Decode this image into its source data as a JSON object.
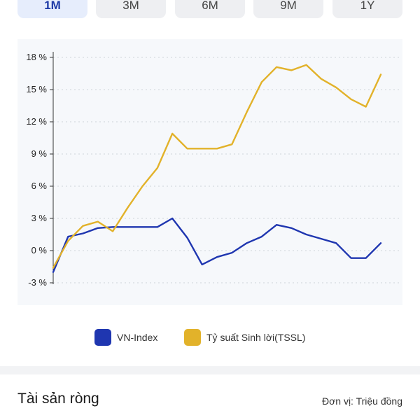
{
  "tabs": [
    {
      "label": "1M",
      "active": true
    },
    {
      "label": "3M",
      "active": false
    },
    {
      "label": "6M",
      "active": false
    },
    {
      "label": "9M",
      "active": false
    },
    {
      "label": "1Y",
      "active": false
    }
  ],
  "colors": {
    "vn_index": "#1f36b0",
    "tssl": "#e2b22a",
    "grid": "#cfd3da",
    "axis": "#333333"
  },
  "legend": {
    "vn_index": "VN-Index",
    "tssl": "Tỷ suất Sinh lời(TSSL)"
  },
  "section": {
    "title": "Tài sản ròng",
    "unit": "Đơn vị: Triệu đồng"
  },
  "chart_data": {
    "type": "line",
    "ylim": [
      -3,
      18
    ],
    "yticks": [
      {
        "value": 18,
        "label": "18 %"
      },
      {
        "value": 15,
        "label": "15 %"
      },
      {
        "value": 12,
        "label": "12 %"
      },
      {
        "value": 9,
        "label": "9 %"
      },
      {
        "value": 6,
        "label": "6 %"
      },
      {
        "value": 3,
        "label": "3 %"
      },
      {
        "value": 0,
        "label": "0 %"
      },
      {
        "value": -3,
        "label": "-3 %"
      }
    ],
    "grid": "horizontal-dashed",
    "legend_position": "bottom",
    "x": [
      0,
      1,
      2,
      3,
      4,
      5,
      6,
      7,
      8,
      9,
      10,
      11,
      12,
      13,
      14,
      15,
      16,
      17,
      18,
      19,
      20,
      21,
      22
    ],
    "series": [
      {
        "name": "VN-Index",
        "color_key": "vn_index",
        "values": [
          -2.0,
          1.3,
          1.6,
          2.1,
          2.2,
          2.2,
          2.2,
          2.2,
          3.0,
          1.2,
          -1.3,
          -0.6,
          -0.2,
          0.7,
          1.3,
          2.4,
          2.1,
          1.5,
          1.1,
          0.7,
          -0.7,
          -0.7,
          0.7
        ]
      },
      {
        "name": "Tỷ suất Sinh lời(TSSL)",
        "color_key": "tssl",
        "values": [
          -1.6,
          0.9,
          2.3,
          2.7,
          1.8,
          4.0,
          6.0,
          7.7,
          10.9,
          9.5,
          9.5,
          9.5,
          9.9,
          12.9,
          15.7,
          17.1,
          16.8,
          17.3,
          16.0,
          15.2,
          14.1,
          13.4,
          16.4
        ]
      }
    ]
  }
}
